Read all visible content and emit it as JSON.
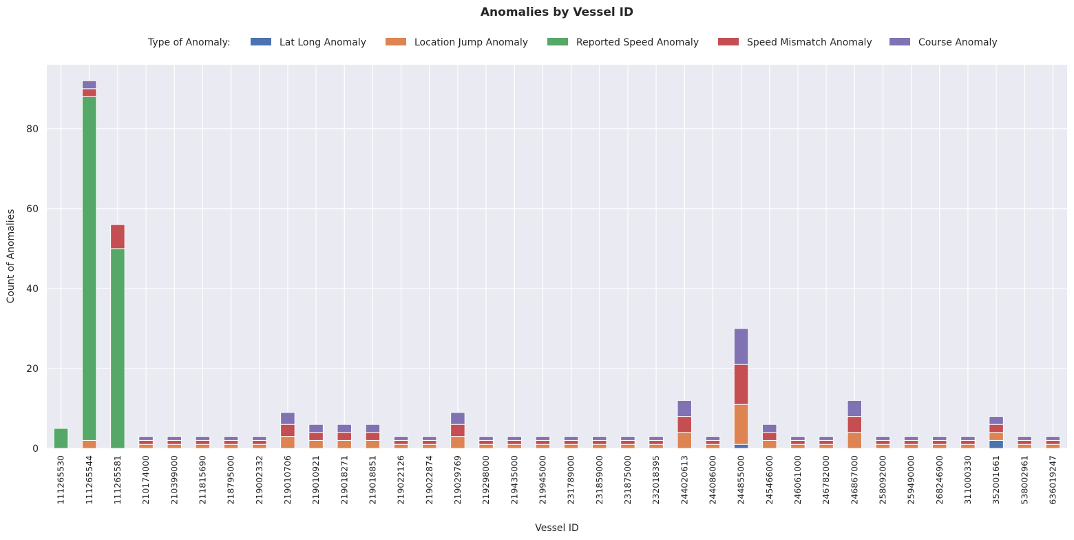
{
  "chart_data": {
    "type": "bar",
    "stacked": true,
    "title": "Anomalies by Vessel ID",
    "xlabel": "Vessel ID",
    "ylabel": "Count of Anomalies",
    "legend_title": "Type of Anomaly:",
    "legend_position": "top-center",
    "grid": true,
    "background": "#eaeaf2",
    "ylim": [
      0,
      96
    ],
    "yticks": [
      0,
      20,
      40,
      60,
      80
    ],
    "categories": [
      "111265530",
      "111265544",
      "111265581",
      "210174000",
      "210399000",
      "211815690",
      "218795000",
      "219002332",
      "219010706",
      "219010921",
      "219018271",
      "219018851",
      "219022126",
      "219022874",
      "219029769",
      "219298000",
      "219435000",
      "219945000",
      "231789000",
      "231859000",
      "231875000",
      "232018395",
      "244020613",
      "244086000",
      "244855000",
      "245466000",
      "246061000",
      "246782000",
      "246867000",
      "258092000",
      "259490000",
      "268246900",
      "311000330",
      "352001661",
      "538002961",
      "636019247"
    ],
    "series": [
      {
        "name": "Lat Long Anomaly",
        "color": "#4c72b0",
        "values": [
          0,
          0,
          0,
          0,
          0,
          0,
          0,
          0,
          0,
          0,
          0,
          0,
          0,
          0,
          0,
          0,
          0,
          0,
          0,
          0,
          0,
          0,
          0,
          0,
          1,
          0,
          0,
          0,
          0,
          0,
          0,
          0,
          0,
          2,
          0,
          0
        ]
      },
      {
        "name": "Location Jump Anomaly",
        "color": "#dd8452",
        "values": [
          0,
          2,
          0,
          1,
          1,
          1,
          1,
          1,
          3,
          2,
          2,
          2,
          1,
          1,
          3,
          1,
          1,
          1,
          1,
          1,
          1,
          1,
          4,
          1,
          10,
          2,
          1,
          1,
          4,
          1,
          1,
          1,
          1,
          2,
          1,
          1
        ]
      },
      {
        "name": "Reported Speed Anomaly",
        "color": "#55a868",
        "values": [
          5,
          86,
          50,
          0,
          0,
          0,
          0,
          0,
          0,
          0,
          0,
          0,
          0,
          0,
          0,
          0,
          0,
          0,
          0,
          0,
          0,
          0,
          0,
          0,
          0,
          0,
          0,
          0,
          0,
          0,
          0,
          0,
          0,
          0,
          0,
          0
        ]
      },
      {
        "name": "Speed Mismatch Anomaly",
        "color": "#c44e52",
        "values": [
          0,
          2,
          6,
          1,
          1,
          1,
          1,
          1,
          3,
          2,
          2,
          2,
          1,
          1,
          3,
          1,
          1,
          1,
          1,
          1,
          1,
          1,
          4,
          1,
          10,
          2,
          1,
          1,
          4,
          1,
          1,
          1,
          1,
          2,
          1,
          1
        ]
      },
      {
        "name": "Course Anomaly",
        "color": "#8172b3",
        "values": [
          0,
          2,
          0,
          1,
          1,
          1,
          1,
          1,
          3,
          2,
          2,
          2,
          1,
          1,
          3,
          1,
          1,
          1,
          1,
          1,
          1,
          1,
          4,
          1,
          9,
          2,
          1,
          1,
          4,
          1,
          1,
          1,
          1,
          2,
          1,
          1
        ]
      }
    ]
  }
}
